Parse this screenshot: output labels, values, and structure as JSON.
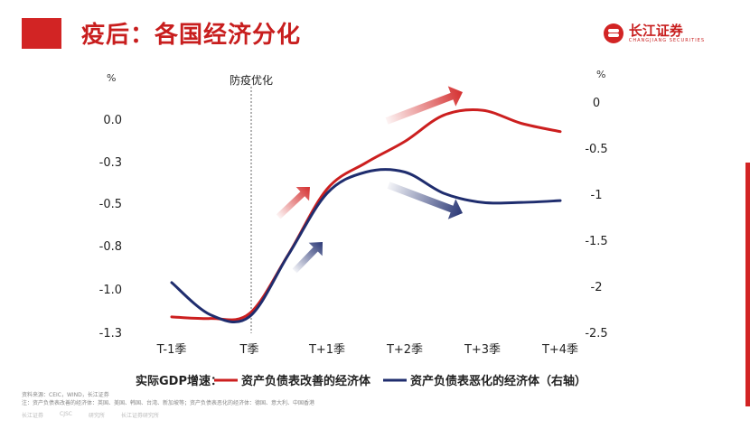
{
  "header": {
    "title": "疫后：各国经济分化"
  },
  "logo": {
    "name": "长江证券",
    "subtitle": "CHANGJIANG SECURITIES"
  },
  "chart_data": {
    "type": "line",
    "categories": [
      "T-1季",
      "T季",
      "T+1季",
      "T+2季",
      "T+3季",
      "T+4季"
    ],
    "annotation": "防疫优化",
    "left_unit": "%",
    "right_unit": "%",
    "left_ticks": [
      "0.0",
      "-0.3",
      "-0.5",
      "-0.8",
      "-1.0",
      "-1.3"
    ],
    "right_ticks": [
      "0",
      "-0.5",
      "-1",
      "-1.5",
      "-2",
      "-2.5"
    ],
    "ylim_left": [
      -1.3,
      0.0
    ],
    "ylim_right": [
      -2.5,
      0
    ],
    "legend_prefix": "实际GDP增速：",
    "grid": false,
    "series": [
      {
        "name": "资产负债表改善的经济体",
        "axis": "left",
        "color": "#cc1f1f",
        "x": [
          0,
          0.5,
          1,
          1.5,
          2,
          2.5,
          3,
          3.5,
          4,
          4.5,
          5
        ],
        "values": [
          -1.2,
          -1.21,
          -1.18,
          -0.82,
          -0.42,
          -0.26,
          -0.13,
          0.03,
          0.06,
          -0.02,
          -0.07
        ]
      },
      {
        "name": "资产负债表恶化的经济体（右轴）",
        "axis": "right",
        "color": "#1f2d6e",
        "x": [
          0,
          0.5,
          1,
          1.5,
          2,
          2.5,
          3,
          3.5,
          4,
          4.5,
          5
        ],
        "values": [
          -1.95,
          -2.3,
          -2.32,
          -1.65,
          -0.98,
          -0.75,
          -0.75,
          -0.98,
          -1.08,
          -1.08,
          -1.06
        ]
      }
    ]
  },
  "footer": {
    "source": "资料来源：CEIC，WIND，长江证券",
    "note": "注：资产负债表改善的经济体：英国、美国、韩国、台湾、新加坡等；资产负债表恶化的经济体：德国、意大利、中国香港"
  },
  "bottom": {
    "items": [
      "长江证券",
      "CJSC",
      "研究所",
      "长江证券研究所"
    ]
  },
  "colors": {
    "accent": "#c81e1e",
    "navy": "#1f2d6e"
  }
}
